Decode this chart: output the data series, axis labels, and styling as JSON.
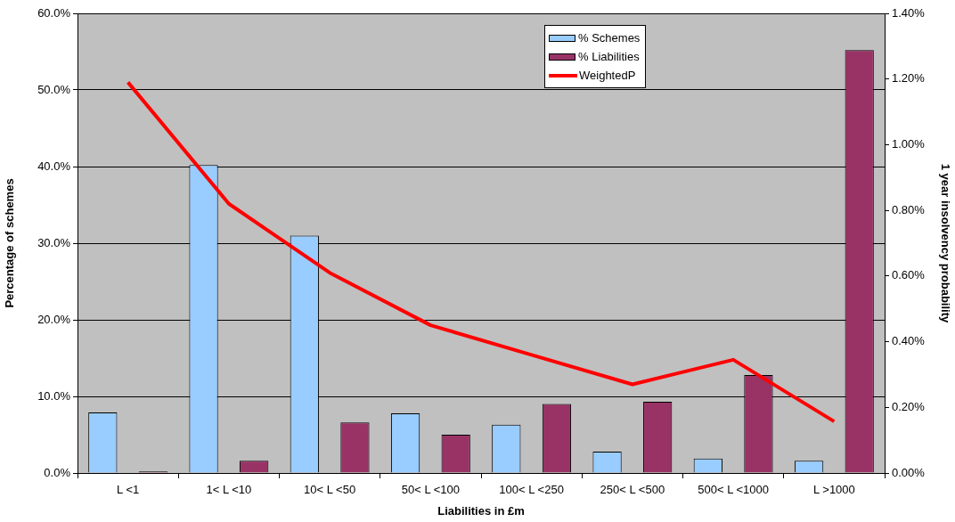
{
  "chart_data": {
    "type": "bar",
    "xlabel": "Liabilities in £m",
    "ylabel": "Percentage of schemes",
    "y2label": "1 year insolvency probability",
    "categories": [
      "L <1",
      "1< L <10",
      "10< L <50",
      "50< L <100",
      "100< L <250",
      "250< L <500",
      "500< L <1000",
      "L >1000"
    ],
    "series": [
      {
        "name": "% Schemes",
        "color": "#99ccff",
        "values": [
          7.9,
          40.2,
          31.0,
          7.8,
          6.3,
          2.8,
          1.9,
          1.6
        ]
      },
      {
        "name": "% Liabilities",
        "color": "#993366",
        "values": [
          0.2,
          1.6,
          6.6,
          5.0,
          9.0,
          9.3,
          12.8,
          55.2
        ]
      },
      {
        "name": "WeightedP",
        "type": "line",
        "axis": "y2",
        "color": "#ff0000",
        "values": [
          1.19,
          0.82,
          0.61,
          0.45,
          0.36,
          0.27,
          0.345,
          0.157
        ]
      }
    ],
    "ylim": [
      0,
      60
    ],
    "yticks": [
      {
        "value": 0,
        "label": "0.0%"
      },
      {
        "value": 10,
        "label": "10.0%"
      },
      {
        "value": 20,
        "label": "20.0%"
      },
      {
        "value": 30,
        "label": "30.0%"
      },
      {
        "value": 40,
        "label": "40.0%"
      },
      {
        "value": 50,
        "label": "50.0%"
      },
      {
        "value": 60,
        "label": "60.0%"
      }
    ],
    "y2lim": [
      0,
      1.4
    ],
    "y2ticks": [
      {
        "value": 0,
        "label": "0.00%"
      },
      {
        "value": 0.2,
        "label": "0.20%"
      },
      {
        "value": 0.4,
        "label": "0.40%"
      },
      {
        "value": 0.6,
        "label": "0.60%"
      },
      {
        "value": 0.8,
        "label": "0.80%"
      },
      {
        "value": 1.0,
        "label": "1.00%"
      },
      {
        "value": 1.2,
        "label": "1.20%"
      },
      {
        "value": 1.4,
        "label": "1.40%"
      }
    ],
    "grid": "y",
    "legend": "top",
    "marker": "none",
    "line_style": "solid"
  }
}
